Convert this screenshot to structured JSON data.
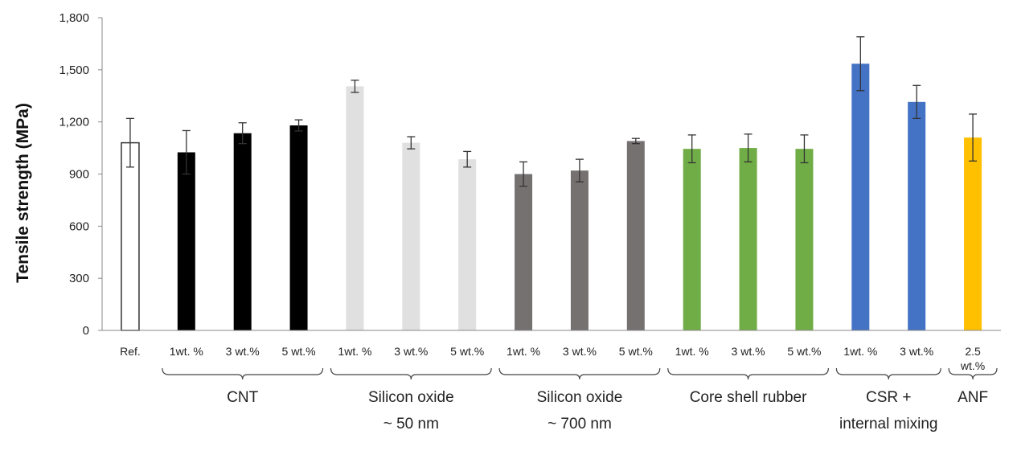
{
  "chart_data": {
    "type": "bar",
    "title": "",
    "xlabel": "",
    "ylabel": "Tensile strength (MPa)",
    "ylim": [
      0,
      1800
    ],
    "yticks": [
      "0",
      "300",
      "600",
      "900",
      "1,200",
      "1,500",
      "1,800"
    ],
    "grid": false,
    "legend": "none",
    "bars": [
      {
        "label": "Ref.",
        "value": 1080,
        "error": 140,
        "color": "#ffffff",
        "stroke": "#333333"
      },
      {
        "label": "1wt. %",
        "value": 1025,
        "error": 125,
        "color": "#000000"
      },
      {
        "label": "3 wt.%",
        "value": 1135,
        "error": 60,
        "color": "#000000"
      },
      {
        "label": "5 wt.%",
        "value": 1180,
        "error": 32,
        "color": "#000000"
      },
      {
        "label": "1wt. %",
        "value": 1405,
        "error": 35,
        "color": "#e0e0e0"
      },
      {
        "label": "3 wt.%",
        "value": 1080,
        "error": 35,
        "color": "#e0e0e0"
      },
      {
        "label": "5 wt.%",
        "value": 985,
        "error": 45,
        "color": "#e0e0e0"
      },
      {
        "label": "1wt. %",
        "value": 900,
        "error": 70,
        "color": "#767171"
      },
      {
        "label": "3 wt.%",
        "value": 920,
        "error": 65,
        "color": "#767171"
      },
      {
        "label": "5 wt.%",
        "value": 1090,
        "error": 15,
        "color": "#767171"
      },
      {
        "label": "1wt. %",
        "value": 1045,
        "error": 80,
        "color": "#70ad47"
      },
      {
        "label": "3 wt.%",
        "value": 1050,
        "error": 80,
        "color": "#70ad47"
      },
      {
        "label": "5 wt.%",
        "value": 1045,
        "error": 80,
        "color": "#70ad47"
      },
      {
        "label": "1wt. %",
        "value": 1535,
        "error": 155,
        "color": "#4472c4"
      },
      {
        "label": "3 wt.%",
        "value": 1315,
        "error": 95,
        "color": "#4472c4"
      },
      {
        "label": "2.5\nwt.%",
        "value": 1110,
        "error": 135,
        "color": "#ffc000"
      }
    ],
    "groups": [
      {
        "label": "CNT",
        "first": 1,
        "last": 3
      },
      {
        "label": "Silicon oxide\n~ 50 nm",
        "first": 4,
        "last": 6
      },
      {
        "label": "Silicon oxide\n~ 700 nm",
        "first": 7,
        "last": 9
      },
      {
        "label": "Core shell rubber",
        "first": 10,
        "last": 12
      },
      {
        "label": "CSR +\ninternal mixing",
        "first": 13,
        "last": 14
      },
      {
        "label": "ANF",
        "first": 15,
        "last": 15
      }
    ]
  }
}
